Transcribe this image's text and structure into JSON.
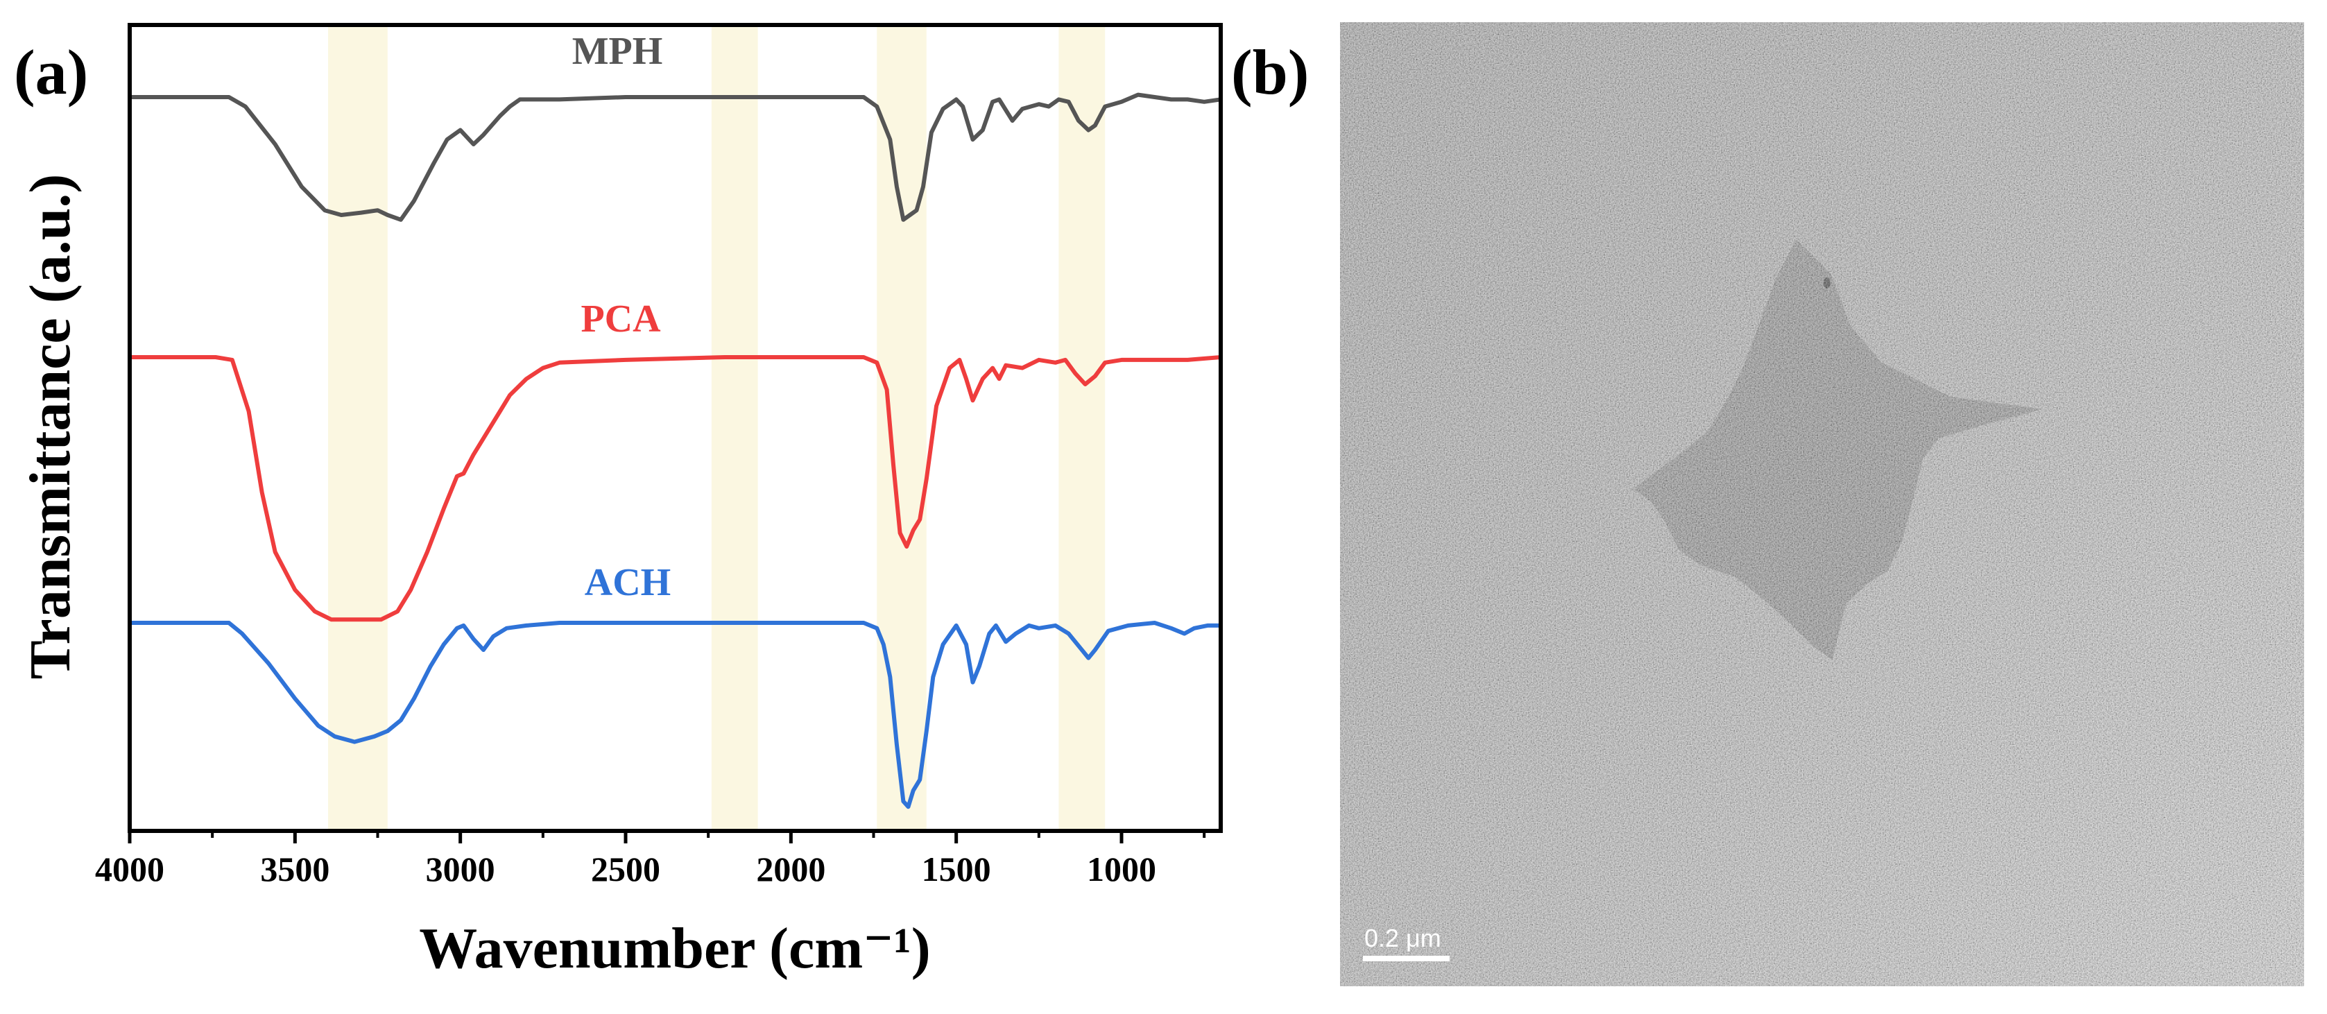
{
  "panels": {
    "a_label": "(a)",
    "b_label": "(b)"
  },
  "chart_data": {
    "type": "line",
    "xlabel": "Wavenumber (cm⁻¹)",
    "ylabel": "Transmittance (a.u.)",
    "xlim": [
      4000,
      700
    ],
    "x_reversed": true,
    "xticks": [
      4000,
      3500,
      3000,
      2500,
      2000,
      1500,
      1000
    ],
    "y_ticks_shown": false,
    "grid": false,
    "highlight_bands": [
      [
        3400,
        3220
      ],
      [
        2240,
        2100
      ],
      [
        1740,
        1590
      ],
      [
        1190,
        1050
      ]
    ],
    "highlight_color": "#fbf7df",
    "series": [
      {
        "name": "MPH",
        "color": "#555555",
        "points": [
          [
            4000,
            1.0
          ],
          [
            3760,
            1.0
          ],
          [
            3700,
            1.0
          ],
          [
            3650,
            0.96
          ],
          [
            3560,
            0.8
          ],
          [
            3480,
            0.62
          ],
          [
            3410,
            0.52
          ],
          [
            3360,
            0.5
          ],
          [
            3300,
            0.51
          ],
          [
            3250,
            0.52
          ],
          [
            3220,
            0.5
          ],
          [
            3180,
            0.48
          ],
          [
            3140,
            0.56
          ],
          [
            3080,
            0.72
          ],
          [
            3040,
            0.82
          ],
          [
            3000,
            0.86
          ],
          [
            2960,
            0.8
          ],
          [
            2930,
            0.84
          ],
          [
            2880,
            0.92
          ],
          [
            2850,
            0.96
          ],
          [
            2820,
            0.99
          ],
          [
            2700,
            0.99
          ],
          [
            2500,
            1.0
          ],
          [
            2000,
            1.0
          ],
          [
            1780,
            1.0
          ],
          [
            1740,
            0.96
          ],
          [
            1700,
            0.82
          ],
          [
            1680,
            0.62
          ],
          [
            1660,
            0.48
          ],
          [
            1640,
            0.5
          ],
          [
            1620,
            0.52
          ],
          [
            1600,
            0.62
          ],
          [
            1575,
            0.85
          ],
          [
            1540,
            0.95
          ],
          [
            1500,
            0.99
          ],
          [
            1480,
            0.96
          ],
          [
            1450,
            0.82
          ],
          [
            1420,
            0.86
          ],
          [
            1390,
            0.98
          ],
          [
            1370,
            0.99
          ],
          [
            1330,
            0.9
          ],
          [
            1300,
            0.95
          ],
          [
            1250,
            0.97
          ],
          [
            1220,
            0.96
          ],
          [
            1190,
            0.99
          ],
          [
            1160,
            0.98
          ],
          [
            1130,
            0.9
          ],
          [
            1100,
            0.86
          ],
          [
            1080,
            0.88
          ],
          [
            1050,
            0.96
          ],
          [
            1000,
            0.98
          ],
          [
            950,
            1.01
          ],
          [
            900,
            1.0
          ],
          [
            850,
            0.99
          ],
          [
            800,
            0.99
          ],
          [
            750,
            0.98
          ],
          [
            700,
            0.99
          ]
        ]
      },
      {
        "name": "PCA",
        "color": "#ef3d3d",
        "points": [
          [
            4000,
            1.0
          ],
          [
            3740,
            1.0
          ],
          [
            3690,
            0.99
          ],
          [
            3640,
            0.8
          ],
          [
            3600,
            0.5
          ],
          [
            3560,
            0.28
          ],
          [
            3500,
            0.14
          ],
          [
            3440,
            0.06
          ],
          [
            3390,
            0.03
          ],
          [
            3300,
            0.03
          ],
          [
            3240,
            0.03
          ],
          [
            3190,
            0.06
          ],
          [
            3150,
            0.14
          ],
          [
            3100,
            0.28
          ],
          [
            3050,
            0.44
          ],
          [
            3010,
            0.56
          ],
          [
            2990,
            0.57
          ],
          [
            2960,
            0.64
          ],
          [
            2920,
            0.72
          ],
          [
            2880,
            0.8
          ],
          [
            2850,
            0.86
          ],
          [
            2800,
            0.92
          ],
          [
            2750,
            0.96
          ],
          [
            2700,
            0.98
          ],
          [
            2500,
            0.99
          ],
          [
            2200,
            1.0
          ],
          [
            1780,
            1.0
          ],
          [
            1740,
            0.98
          ],
          [
            1710,
            0.88
          ],
          [
            1690,
            0.6
          ],
          [
            1670,
            0.35
          ],
          [
            1650,
            0.3
          ],
          [
            1630,
            0.36
          ],
          [
            1610,
            0.4
          ],
          [
            1590,
            0.55
          ],
          [
            1560,
            0.82
          ],
          [
            1520,
            0.96
          ],
          [
            1490,
            0.99
          ],
          [
            1470,
            0.92
          ],
          [
            1450,
            0.84
          ],
          [
            1420,
            0.92
          ],
          [
            1390,
            0.96
          ],
          [
            1370,
            0.92
          ],
          [
            1350,
            0.97
          ],
          [
            1300,
            0.96
          ],
          [
            1250,
            0.99
          ],
          [
            1200,
            0.98
          ],
          [
            1170,
            0.99
          ],
          [
            1140,
            0.94
          ],
          [
            1110,
            0.9
          ],
          [
            1080,
            0.93
          ],
          [
            1050,
            0.98
          ],
          [
            1000,
            0.99
          ],
          [
            900,
            0.99
          ],
          [
            800,
            0.99
          ],
          [
            700,
            1.0
          ]
        ]
      },
      {
        "name": "ACH",
        "color": "#2f73d8",
        "points": [
          [
            4000,
            1.0
          ],
          [
            3800,
            1.0
          ],
          [
            3700,
            1.0
          ],
          [
            3660,
            0.96
          ],
          [
            3580,
            0.85
          ],
          [
            3500,
            0.72
          ],
          [
            3430,
            0.62
          ],
          [
            3380,
            0.58
          ],
          [
            3320,
            0.56
          ],
          [
            3260,
            0.58
          ],
          [
            3220,
            0.6
          ],
          [
            3180,
            0.64
          ],
          [
            3140,
            0.72
          ],
          [
            3090,
            0.84
          ],
          [
            3050,
            0.92
          ],
          [
            3010,
            0.98
          ],
          [
            2990,
            0.99
          ],
          [
            2960,
            0.94
          ],
          [
            2930,
            0.9
          ],
          [
            2900,
            0.95
          ],
          [
            2860,
            0.98
          ],
          [
            2800,
            0.99
          ],
          [
            2700,
            1.0
          ],
          [
            2400,
            1.0
          ],
          [
            2000,
            1.0
          ],
          [
            1780,
            1.0
          ],
          [
            1740,
            0.98
          ],
          [
            1720,
            0.92
          ],
          [
            1700,
            0.8
          ],
          [
            1680,
            0.55
          ],
          [
            1660,
            0.34
          ],
          [
            1645,
            0.32
          ],
          [
            1630,
            0.38
          ],
          [
            1610,
            0.42
          ],
          [
            1590,
            0.6
          ],
          [
            1570,
            0.8
          ],
          [
            1540,
            0.92
          ],
          [
            1500,
            0.99
          ],
          [
            1470,
            0.92
          ],
          [
            1450,
            0.78
          ],
          [
            1430,
            0.84
          ],
          [
            1400,
            0.96
          ],
          [
            1380,
            0.99
          ],
          [
            1350,
            0.93
          ],
          [
            1320,
            0.96
          ],
          [
            1280,
            0.99
          ],
          [
            1250,
            0.98
          ],
          [
            1200,
            0.99
          ],
          [
            1160,
            0.96
          ],
          [
            1120,
            0.9
          ],
          [
            1100,
            0.87
          ],
          [
            1080,
            0.9
          ],
          [
            1040,
            0.97
          ],
          [
            980,
            0.99
          ],
          [
            900,
            1.0
          ],
          [
            850,
            0.98
          ],
          [
            810,
            0.96
          ],
          [
            780,
            0.98
          ],
          [
            740,
            0.99
          ],
          [
            700,
            0.99
          ]
        ]
      }
    ]
  },
  "micrograph": {
    "scale_bar_label": "0.2 μm",
    "background_color": "#a9a9a9",
    "flake_color": "#6b6b6b"
  }
}
